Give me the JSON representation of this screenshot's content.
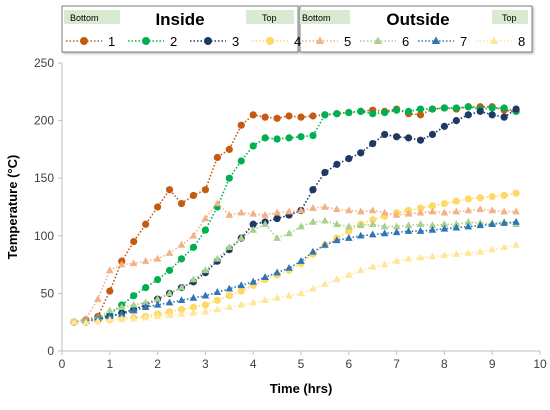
{
  "chart_data": {
    "type": "line",
    "xlabel": "Time (hrs)",
    "ylabel": "Temperature (°C)",
    "xlim": [
      0,
      10
    ],
    "ylim": [
      0,
      250
    ],
    "xticks": [
      0,
      1,
      2,
      3,
      4,
      5,
      6,
      7,
      8,
      9,
      10
    ],
    "yticks": [
      0,
      50,
      100,
      150,
      200,
      250
    ],
    "grid": false,
    "legend": {
      "position": "top",
      "groups": [
        {
          "title": "Inside",
          "left_tag": "Bottom",
          "right_tag": "Top",
          "entries": [
            "1",
            "2",
            "3",
            "4"
          ]
        },
        {
          "title": "Outside",
          "left_tag": "Bottom",
          "right_tag": "Top",
          "entries": [
            "5",
            "6",
            "7",
            "8"
          ]
        }
      ]
    },
    "series": [
      {
        "name": "1",
        "color": "#c55a11",
        "marker": "circle",
        "x": [
          0.25,
          0.5,
          0.75,
          1.0,
          1.25,
          1.5,
          1.75,
          2.0,
          2.25,
          2.5,
          2.75,
          3.0,
          3.25,
          3.5,
          3.75,
          4.0,
          4.25,
          4.5,
          4.75,
          5.0,
          5.25,
          5.5,
          5.75,
          6.0,
          6.25,
          6.5,
          6.75,
          7.0,
          7.25,
          7.5,
          7.75,
          8.0,
          8.25,
          8.5,
          8.75,
          9.0,
          9.25,
          9.5
        ],
        "y": [
          25,
          27,
          30,
          52,
          78,
          95,
          110,
          125,
          140,
          128,
          135,
          140,
          168,
          175,
          196,
          205,
          203,
          202,
          204,
          203,
          204,
          205,
          206,
          207,
          208,
          209,
          208,
          210,
          206,
          205,
          210,
          211,
          210,
          212,
          212,
          212,
          209,
          208
        ]
      },
      {
        "name": "2",
        "color": "#00b050",
        "marker": "circle",
        "x": [
          0.25,
          0.5,
          0.75,
          1.0,
          1.25,
          1.5,
          1.75,
          2.0,
          2.25,
          2.5,
          2.75,
          3.0,
          3.25,
          3.5,
          3.75,
          4.0,
          4.25,
          4.5,
          4.75,
          5.0,
          5.25,
          5.5,
          5.75,
          6.0,
          6.25,
          6.5,
          6.75,
          7.0,
          7.25,
          7.5,
          7.75,
          8.0,
          8.25,
          8.5,
          8.75,
          9.0,
          9.25,
          9.5
        ],
        "y": [
          25,
          25,
          28,
          32,
          40,
          48,
          55,
          62,
          70,
          80,
          90,
          105,
          125,
          150,
          165,
          178,
          185,
          184,
          185,
          186,
          187,
          205,
          206,
          207,
          208,
          206,
          207,
          209,
          208,
          210,
          210,
          211,
          211,
          212,
          210,
          211,
          211,
          208
        ]
      },
      {
        "name": "3",
        "color": "#1f3864",
        "marker": "circle",
        "x": [
          0.25,
          0.5,
          0.75,
          1.0,
          1.25,
          1.5,
          1.75,
          2.0,
          2.25,
          2.5,
          2.75,
          3.0,
          3.25,
          3.5,
          3.75,
          4.0,
          4.25,
          4.5,
          4.75,
          5.0,
          5.25,
          5.5,
          5.75,
          6.0,
          6.25,
          6.5,
          6.75,
          7.0,
          7.25,
          7.5,
          7.75,
          8.0,
          8.25,
          8.5,
          8.75,
          9.0,
          9.25,
          9.5
        ],
        "y": [
          25,
          25,
          27,
          30,
          33,
          36,
          40,
          45,
          50,
          55,
          60,
          68,
          78,
          88,
          98,
          110,
          112,
          115,
          118,
          122,
          140,
          155,
          162,
          167,
          172,
          180,
          188,
          186,
          185,
          183,
          188,
          195,
          200,
          205,
          208,
          205,
          203,
          210
        ]
      },
      {
        "name": "4",
        "color": "#ffd966",
        "marker": "circle",
        "x": [
          0.25,
          0.5,
          0.75,
          1.0,
          1.25,
          1.5,
          1.75,
          2.0,
          2.25,
          2.5,
          2.75,
          3.0,
          3.25,
          3.5,
          3.75,
          4.0,
          4.25,
          4.5,
          4.75,
          5.0,
          5.25,
          5.5,
          5.75,
          6.0,
          6.25,
          6.5,
          6.75,
          7.0,
          7.25,
          7.5,
          7.75,
          8.0,
          8.25,
          8.5,
          8.75,
          9.0,
          9.25,
          9.5
        ],
        "y": [
          25,
          25,
          26,
          27,
          28,
          29,
          30,
          32,
          34,
          36,
          38,
          40,
          44,
          48,
          52,
          57,
          62,
          66,
          70,
          76,
          84,
          92,
          98,
          104,
          110,
          114,
          117,
          120,
          122,
          124,
          126,
          128,
          130,
          132,
          133,
          134,
          135,
          137
        ]
      },
      {
        "name": "5",
        "color": "#f4b183",
        "marker": "triangle",
        "x": [
          0.25,
          0.5,
          0.75,
          1.0,
          1.25,
          1.5,
          1.75,
          2.0,
          2.25,
          2.5,
          2.75,
          3.0,
          3.25,
          3.5,
          3.75,
          4.0,
          4.25,
          4.5,
          4.75,
          5.0,
          5.25,
          5.5,
          5.75,
          6.0,
          6.25,
          6.5,
          6.75,
          7.0,
          7.25,
          7.5,
          7.75,
          8.0,
          8.25,
          8.5,
          8.75,
          9.0,
          9.25,
          9.5
        ],
        "y": [
          25,
          28,
          45,
          70,
          75,
          76,
          78,
          80,
          85,
          92,
          100,
          115,
          128,
          118,
          120,
          119,
          118,
          120,
          121,
          122,
          124,
          125,
          123,
          122,
          121,
          122,
          120,
          118,
          119,
          120,
          121,
          120,
          121,
          122,
          123,
          122,
          121,
          121
        ]
      },
      {
        "name": "6",
        "color": "#a9d18e",
        "marker": "triangle",
        "x": [
          0.25,
          0.5,
          0.75,
          1.0,
          1.25,
          1.5,
          1.75,
          2.0,
          2.25,
          2.5,
          2.75,
          3.0,
          3.25,
          3.5,
          3.75,
          4.0,
          4.25,
          4.5,
          4.75,
          5.0,
          5.25,
          5.5,
          5.75,
          6.0,
          6.25,
          6.5,
          6.75,
          7.0,
          7.25,
          7.5,
          7.75,
          8.0,
          8.25,
          8.5,
          8.75,
          9.0,
          9.25,
          9.5
        ],
        "y": [
          25,
          26,
          29,
          35,
          38,
          40,
          42,
          45,
          50,
          55,
          62,
          70,
          80,
          90,
          98,
          105,
          110,
          98,
          102,
          108,
          112,
          113,
          110,
          108,
          109,
          110,
          108,
          108,
          109,
          110,
          109,
          110,
          110,
          112,
          111,
          111,
          112,
          110
        ]
      },
      {
        "name": "7",
        "color": "#2e75b6",
        "marker": "triangle",
        "x": [
          0.25,
          0.5,
          0.75,
          1.0,
          1.25,
          1.5,
          1.75,
          2.0,
          2.25,
          2.5,
          2.75,
          3.0,
          3.25,
          3.5,
          3.75,
          4.0,
          4.25,
          4.5,
          4.75,
          5.0,
          5.25,
          5.5,
          5.75,
          6.0,
          6.25,
          6.5,
          6.75,
          7.0,
          7.25,
          7.5,
          7.75,
          8.0,
          8.25,
          8.5,
          8.75,
          9.0,
          9.25,
          9.5
        ],
        "y": [
          25,
          26,
          28,
          30,
          32,
          35,
          38,
          40,
          42,
          44,
          46,
          48,
          51,
          54,
          57,
          60,
          64,
          68,
          72,
          78,
          86,
          92,
          96,
          98,
          100,
          101,
          102,
          103,
          104,
          104,
          105,
          106,
          107,
          108,
          109,
          110,
          111,
          112
        ]
      },
      {
        "name": "8",
        "color": "#ffe699",
        "marker": "triangle",
        "x": [
          0.25,
          0.5,
          0.75,
          1.0,
          1.25,
          1.5,
          1.75,
          2.0,
          2.25,
          2.5,
          2.75,
          3.0,
          3.25,
          3.5,
          3.75,
          4.0,
          4.25,
          4.5,
          4.75,
          5.0,
          5.25,
          5.5,
          5.75,
          6.0,
          6.25,
          6.5,
          6.75,
          7.0,
          7.25,
          7.5,
          7.75,
          8.0,
          8.25,
          8.5,
          8.75,
          9.0,
          9.25,
          9.5
        ],
        "y": [
          25,
          25,
          26,
          27,
          28,
          28,
          29,
          30,
          31,
          32,
          33,
          34,
          36,
          38,
          40,
          42,
          44,
          46,
          48,
          50,
          54,
          58,
          62,
          66,
          70,
          73,
          75,
          78,
          80,
          81,
          82,
          83,
          84,
          85,
          86,
          88,
          90,
          92
        ]
      }
    ]
  }
}
